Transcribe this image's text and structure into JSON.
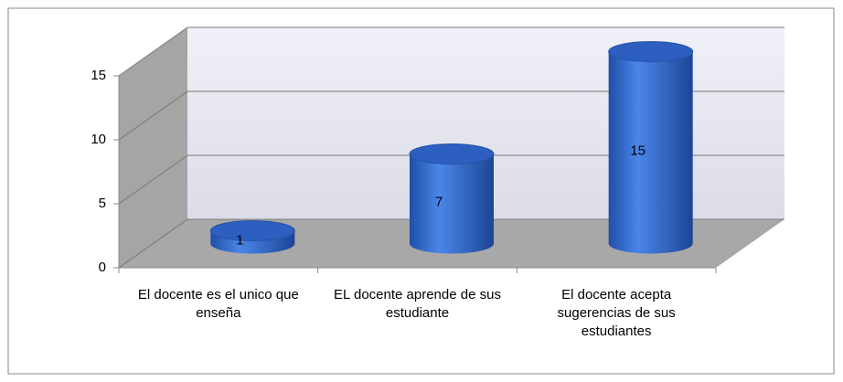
{
  "chart_data": {
    "type": "bar",
    "shape": "cylinder",
    "categories": [
      "El docente es el unico que enseña",
      "EL docente aprende de sus estudiante",
      "El docente acepta sugerencias de sus estudiantes"
    ],
    "values": [
      1,
      7,
      15
    ],
    "color": "#3b6fd4",
    "ylim": [
      0,
      15
    ],
    "yticks": [
      0,
      5,
      10,
      15
    ],
    "grid": true
  }
}
